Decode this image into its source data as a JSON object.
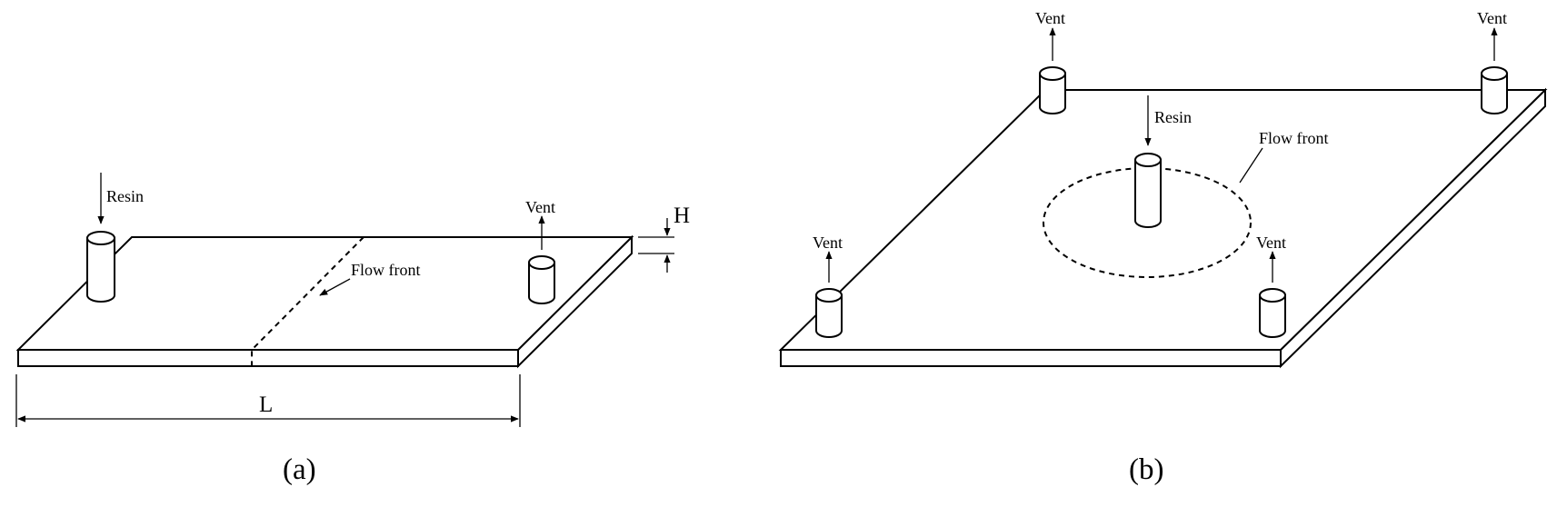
{
  "diagram_a": {
    "resin_label": "Resin",
    "vent_label": "Vent",
    "flow_front_label": "Flow front",
    "height_label": "H",
    "length_label": "L",
    "caption": "(a)"
  },
  "diagram_b": {
    "resin_label": "Resin",
    "vent_top_left_label": "Vent",
    "vent_top_right_label": "Vent",
    "vent_bottom_left_label": "Vent",
    "vent_bottom_right_label": "Vent",
    "flow_front_label": "Flow front",
    "caption": "(b)"
  }
}
